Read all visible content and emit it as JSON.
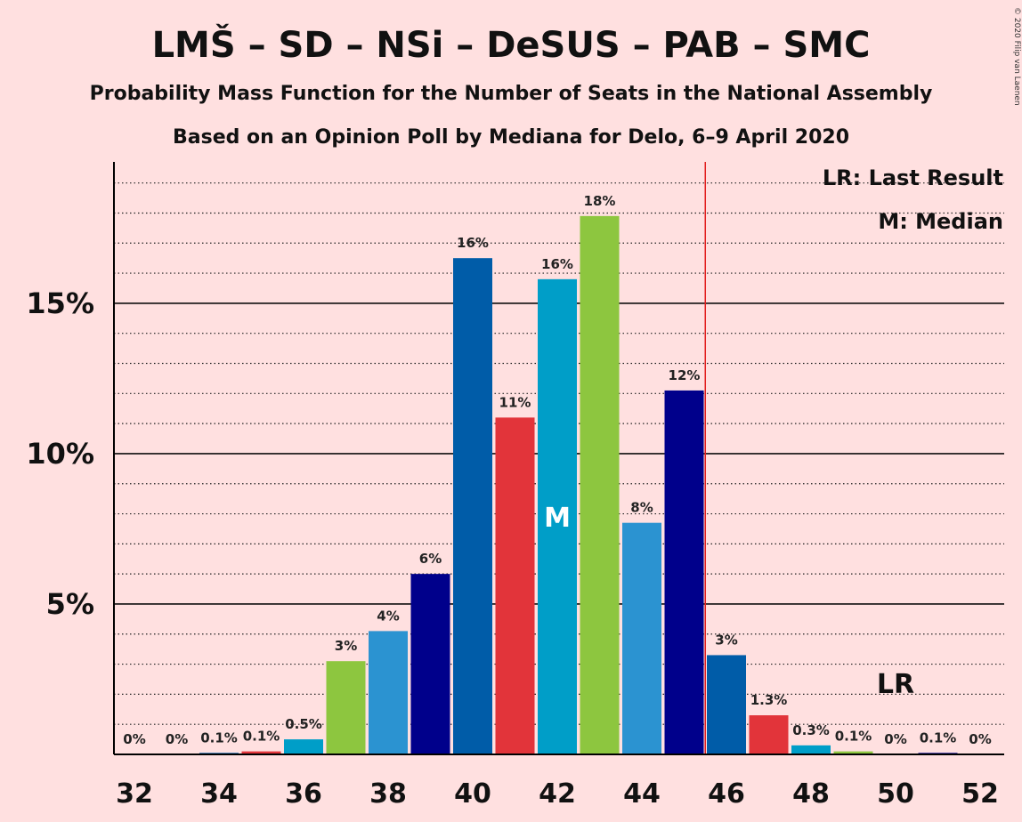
{
  "chart_data": {
    "type": "bar",
    "title": "LMŠ – SD – NSi – DeSUS – PAB – SMC",
    "subtitle1": "Probability Mass Function for the Number of Seats in the National Assembly",
    "subtitle2": "Based on an Opinion Poll by Mediana for Delo, 6–9 April 2020",
    "credit": "© 2020 Filip van Laenen",
    "x": [
      32,
      33,
      34,
      35,
      36,
      37,
      38,
      39,
      40,
      41,
      42,
      43,
      44,
      45,
      46,
      47,
      48,
      49,
      50,
      51,
      52
    ],
    "values": [
      0,
      0,
      0.05,
      0.1,
      0.5,
      3.1,
      4.1,
      6.0,
      16.5,
      11.2,
      15.8,
      17.9,
      7.7,
      12.1,
      3.3,
      1.3,
      0.3,
      0.1,
      0,
      0.05,
      0
    ],
    "labels": [
      "0%",
      "0%",
      "0.1%",
      "0.1%",
      "0.5%",
      "3%",
      "4%",
      "6%",
      "16%",
      "11%",
      "16%",
      "18%",
      "8%",
      "12%",
      "3%",
      "1.3%",
      "0.3%",
      "0.1%",
      "0%",
      "0.1%",
      "0%"
    ],
    "colors": [
      "#2b93d1",
      "#00008b",
      "#005ca8",
      "#e2343a",
      "#009ec8",
      "#8dc63f",
      "#2b93d1",
      "#00008b",
      "#005ca8",
      "#e2343a",
      "#009ec8",
      "#8dc63f",
      "#2b93d1",
      "#00008b",
      "#005ca8",
      "#e2343a",
      "#009ec8",
      "#8dc63f",
      "#2b93d1",
      "#00008b",
      "#005ca8"
    ],
    "xticks": [
      32,
      34,
      36,
      38,
      40,
      42,
      44,
      46,
      48,
      50,
      52
    ],
    "yticks": [
      {
        "value": 5,
        "label": "5%"
      },
      {
        "value": 10,
        "label": "10%"
      },
      {
        "value": 15,
        "label": "15%"
      }
    ],
    "ylim": [
      0,
      19.7
    ],
    "minor_grid_step": 1,
    "majority_line": 45.5,
    "majority_color": "#e21e1e",
    "median_seat": 42,
    "median_marker": "M",
    "last_result_seat": 50,
    "last_result_marker": "LR",
    "legend": [
      "LR: Last Result",
      "M: Median"
    ],
    "legend_position": "top-right"
  }
}
